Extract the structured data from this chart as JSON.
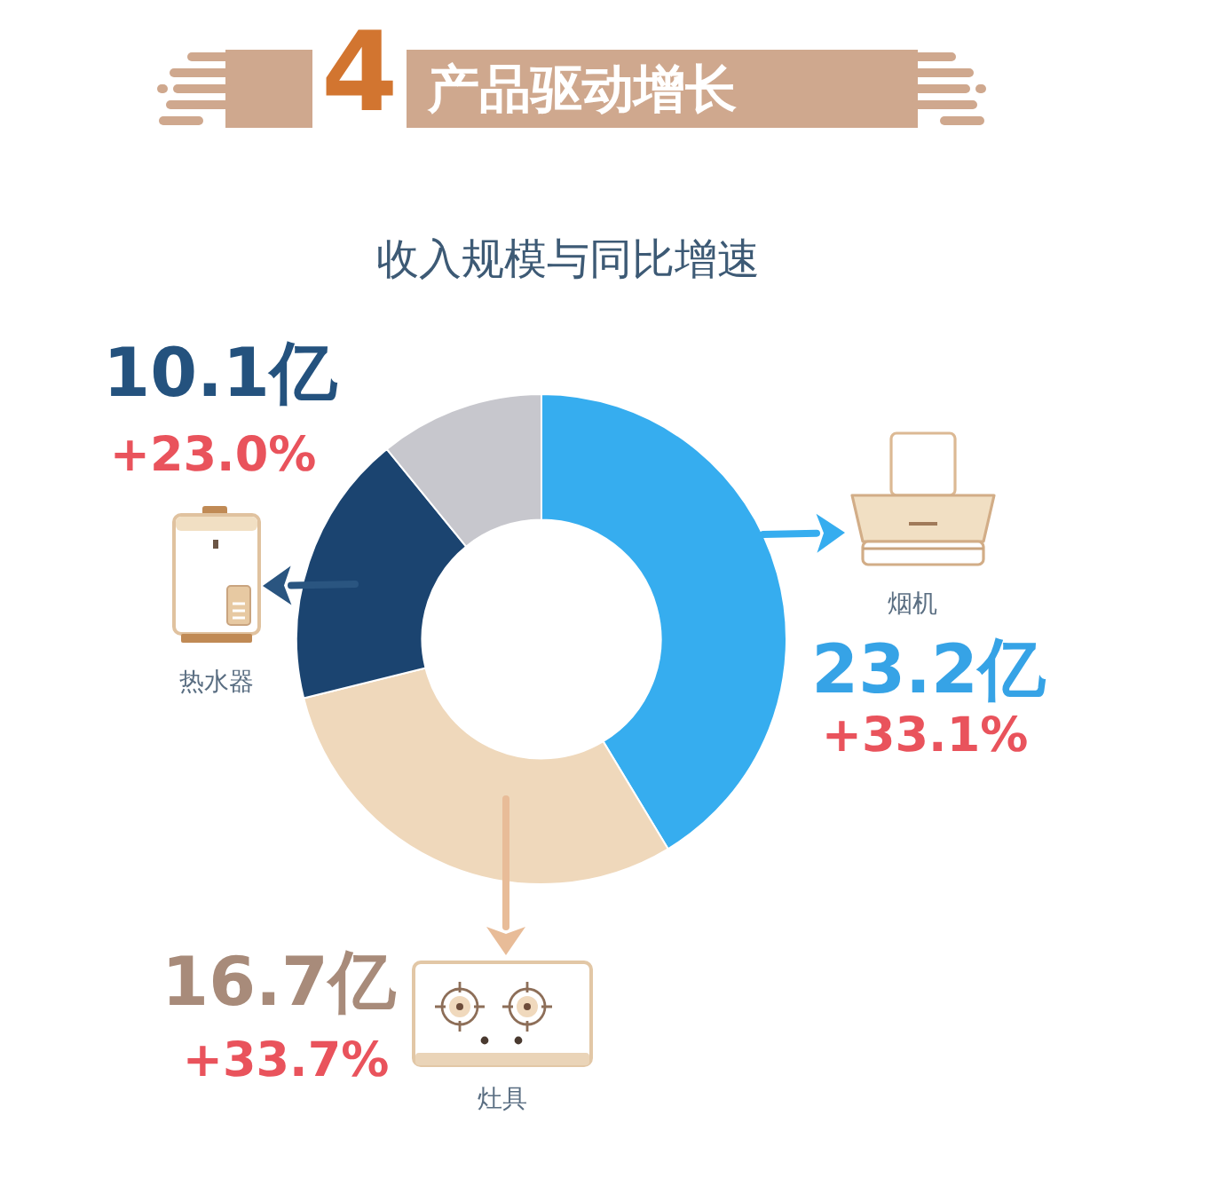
{
  "chart_data": {
    "type": "donut",
    "title": "4产品驱动增长",
    "subtitle": "收入规模与同比增速",
    "categories": [
      "烟机",
      "灶具",
      "热水器",
      null
    ],
    "values": [
      23.2,
      16.7,
      10.1,
      6.1
    ],
    "colors": [
      "#36adef",
      "#efd8bb",
      "#1b4470",
      "#c7c7cd"
    ],
    "value_labels": [
      "23.2亿",
      "16.7亿",
      "10.1亿",
      null
    ],
    "annotations": [
      {
        "text": "+33.1%",
        "x": "烟机"
      },
      {
        "text": "+33.7%",
        "x": "灶具"
      },
      {
        "text": "+23.0%",
        "x": "热水器"
      }
    ]
  }
}
